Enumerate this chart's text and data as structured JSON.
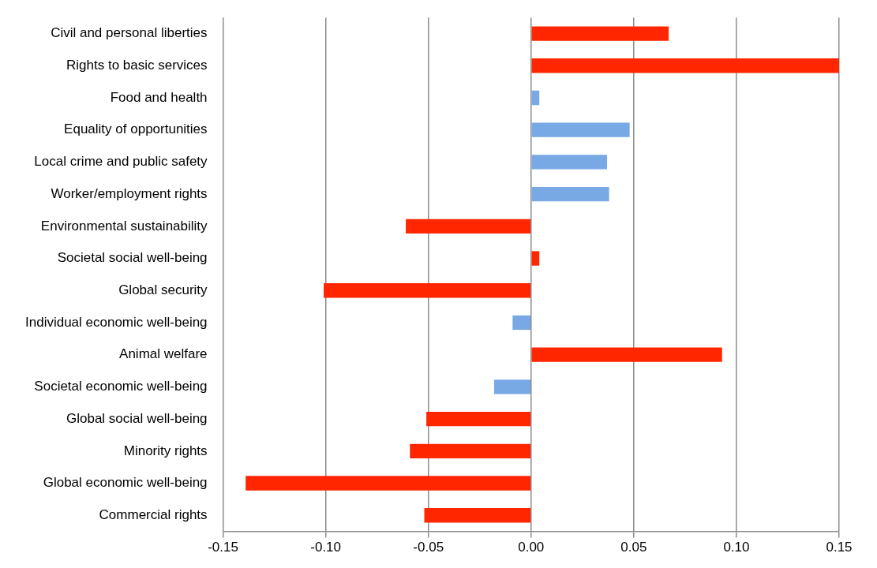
{
  "chart_data": {
    "type": "bar",
    "orientation": "horizontal",
    "categories": [
      "Civil and personal liberties",
      "Rights to basic services",
      "Food and health",
      "Equality of opportunities",
      "Local crime and public safety",
      "Worker/employment rights",
      "Environmental sustainability",
      "Societal social well-being",
      "Global security",
      "Individual economic well-being",
      "Animal welfare",
      "Societal economic well-being",
      "Global social well-being",
      "Minority rights",
      "Global economic well-being",
      "Commercial rights"
    ],
    "values": [
      0.067,
      0.15,
      0.004,
      0.048,
      0.037,
      0.038,
      -0.061,
      0.004,
      -0.101,
      -0.009,
      0.093,
      -0.018,
      -0.051,
      -0.059,
      -0.139,
      -0.052
    ],
    "colors": [
      "#ff2600",
      "#ff2600",
      "#79a9e4",
      "#79a9e4",
      "#79a9e4",
      "#79a9e4",
      "#ff2600",
      "#ff2600",
      "#ff2600",
      "#79a9e4",
      "#ff2600",
      "#79a9e4",
      "#ff2600",
      "#ff2600",
      "#ff2600",
      "#ff2600"
    ],
    "xlim": [
      -0.15,
      0.15
    ],
    "xticks": [
      {
        "value": -0.15,
        "label": "-0.15"
      },
      {
        "value": -0.1,
        "label": "-0.10"
      },
      {
        "value": -0.05,
        "label": "-0.05"
      },
      {
        "value": 0,
        "label": "0.00"
      },
      {
        "value": 0.05,
        "label": "0.05"
      },
      {
        "value": 0.1,
        "label": "0.10"
      },
      {
        "value": 0.15,
        "label": "0.15"
      }
    ],
    "grid": "x",
    "legend": false
  }
}
